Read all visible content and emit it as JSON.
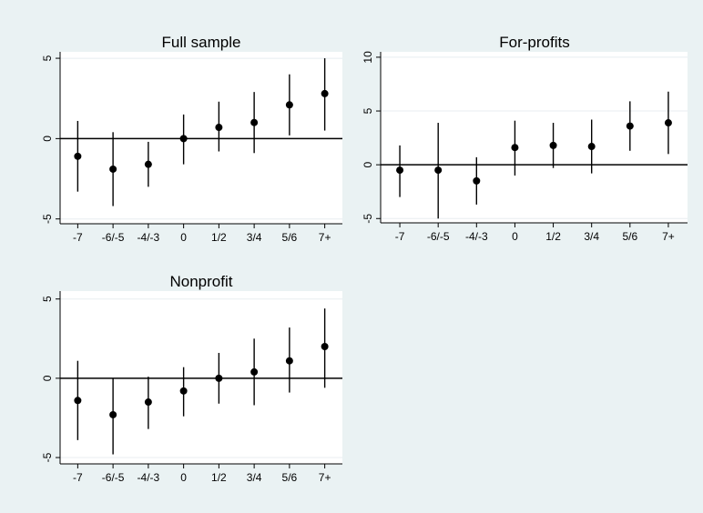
{
  "chart_data": [
    {
      "type": "scatter",
      "error_bars": true,
      "title": "Full sample",
      "categories": [
        "-7",
        "-6/-5",
        "-4/-3",
        "0",
        "1/2",
        "3/4",
        "5/6",
        "7+"
      ],
      "values": [
        -1.1,
        -1.9,
        -1.6,
        0.0,
        0.7,
        1.0,
        2.1,
        2.8
      ],
      "lower": [
        -3.3,
        -4.2,
        -3.0,
        -1.6,
        -0.8,
        -0.9,
        0.2,
        0.5
      ],
      "upper": [
        1.1,
        0.4,
        -0.2,
        1.5,
        2.3,
        2.9,
        4.0,
        5.0
      ],
      "yticks": [
        5,
        0,
        -5
      ],
      "ylim": [
        -5.3,
        5.4
      ],
      "reference_line": 0,
      "grid": true
    },
    {
      "type": "scatter",
      "error_bars": true,
      "title": "For-profits",
      "categories": [
        "-7",
        "-6/-5",
        "-4/-3",
        "0",
        "1/2",
        "3/4",
        "5/6",
        "7+"
      ],
      "values": [
        -0.5,
        -0.5,
        -1.5,
        1.6,
        1.8,
        1.7,
        3.6,
        3.9
      ],
      "lower": [
        -3.0,
        -5.0,
        -3.7,
        -1.0,
        -0.3,
        -0.8,
        1.3,
        1.0
      ],
      "upper": [
        1.8,
        3.9,
        0.7,
        4.1,
        3.9,
        4.2,
        5.9,
        6.8
      ],
      "yticks": [
        10,
        5,
        0,
        -5
      ],
      "ylim": [
        -5.4,
        10.5
      ],
      "reference_line": 0,
      "grid": true
    },
    {
      "type": "scatter",
      "error_bars": true,
      "title": "Nonprofit",
      "categories": [
        "-7",
        "-6/-5",
        "-4/-3",
        "0",
        "1/2",
        "3/4",
        "5/6",
        "7+"
      ],
      "values": [
        -1.4,
        -2.3,
        -1.5,
        -0.8,
        0.0,
        0.4,
        1.1,
        2.0
      ],
      "lower": [
        -3.9,
        -4.8,
        -3.2,
        -2.4,
        -1.6,
        -1.7,
        -0.9,
        -0.6
      ],
      "upper": [
        1.1,
        0.0,
        0.1,
        0.7,
        1.6,
        2.5,
        3.2,
        4.4
      ],
      "yticks": [
        5,
        0,
        -5
      ],
      "ylim": [
        -5.4,
        5.5
      ],
      "reference_line": 0,
      "grid": true
    }
  ],
  "colors": {
    "outer_background": "#eaf2f3",
    "plot_background": "#ffffff",
    "grid": "#e8eef0",
    "marker": "#000000",
    "axis": "#000000"
  }
}
